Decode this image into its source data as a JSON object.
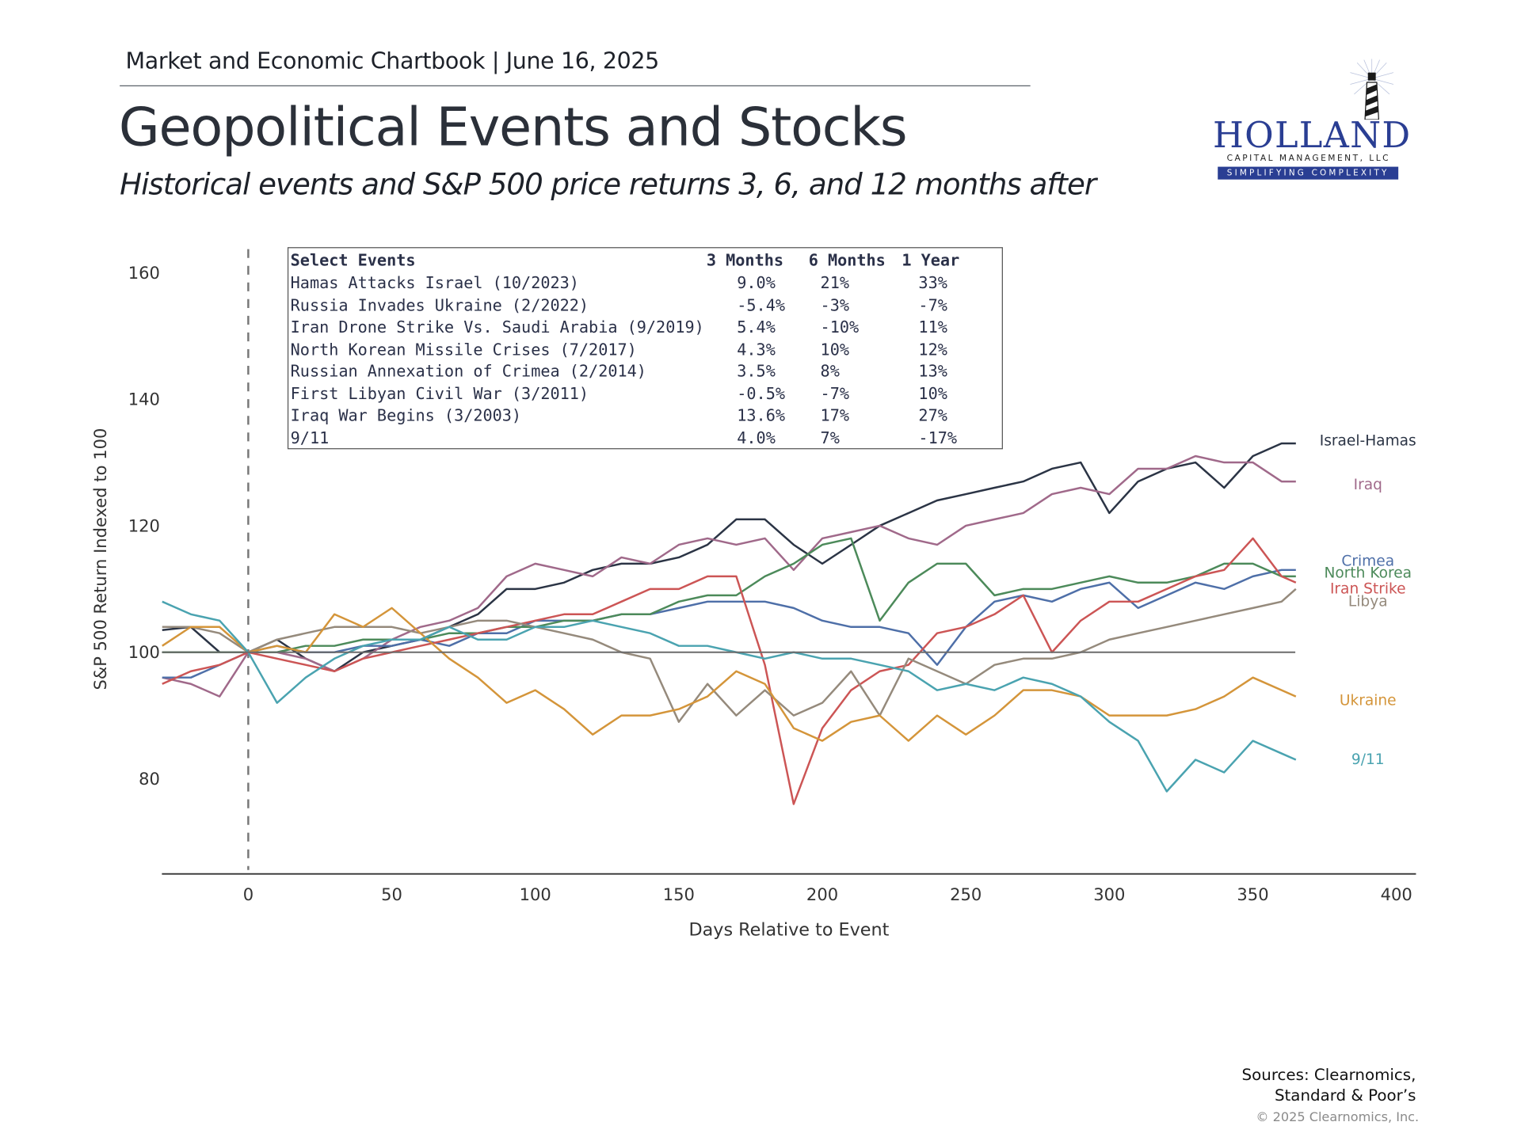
{
  "header": {
    "kicker": "Market and Economic Chartbook | June 16, 2025",
    "title": "Geopolitical Events and Stocks",
    "subtitle": "Historical events and S&P 500 price returns 3, 6, and 12 months after"
  },
  "logo": {
    "wordmark": "HOLLAND",
    "subline": "CAPITAL MANAGEMENT, LLC",
    "tagline": "SIMPLIFYING COMPLEXITY",
    "icon": "lighthouse-icon",
    "brand_color": "#2a3e93"
  },
  "table": {
    "headers": [
      "Select Events",
      "3 Months",
      "6 Months",
      "1 Year"
    ],
    "rows": [
      [
        "Hamas Attacks Israel (10/2023)",
        "9.0%",
        "21%",
        "33%"
      ],
      [
        "Russia Invades Ukraine (2/2022)",
        "-5.4%",
        "-3%",
        "-7%"
      ],
      [
        "Iran Drone Strike Vs. Saudi Arabia (9/2019)",
        "5.4%",
        "-10%",
        "11%"
      ],
      [
        "North Korean Missile Crises (7/2017)",
        "4.3%",
        "10%",
        "12%"
      ],
      [
        "Russian Annexation of Crimea (2/2014)",
        "3.5%",
        "8%",
        "13%"
      ],
      [
        "First Libyan Civil War (3/2011)",
        "-0.5%",
        "-7%",
        "10%"
      ],
      [
        "Iraq War Begins (3/2003)",
        "13.6%",
        "17%",
        "27%"
      ],
      [
        "9/11",
        "4.0%",
        "7%",
        "-17%"
      ]
    ]
  },
  "footer": {
    "sources_line1": "Sources: Clearnomics,",
    "sources_line2": "Standard & Poor’s",
    "copyright": "© 2025 Clearnomics, Inc."
  },
  "chart_data": {
    "type": "line",
    "title": "Geopolitical Events and Stocks",
    "xlabel": "Days Relative to Event",
    "ylabel": "S&P 500 Return Indexed to 100",
    "xlim": [
      -30,
      405
    ],
    "ylim": [
      65,
      165
    ],
    "xticks": [
      0,
      50,
      100,
      150,
      200,
      250,
      300,
      350,
      400
    ],
    "yticks": [
      80,
      100,
      120,
      140,
      160
    ],
    "reference_line": 100,
    "event_marker_x": 0,
    "grid": false,
    "legend": "direct labels at right end of lines",
    "x": [
      -30,
      -20,
      -10,
      0,
      10,
      20,
      30,
      40,
      50,
      60,
      70,
      80,
      90,
      100,
      110,
      120,
      130,
      140,
      150,
      160,
      170,
      180,
      190,
      200,
      210,
      220,
      230,
      240,
      250,
      260,
      270,
      280,
      290,
      300,
      310,
      320,
      330,
      340,
      350,
      360,
      365
    ],
    "series": [
      {
        "name": "Israel-Hamas",
        "color": "#2b3445",
        "values": [
          103.5,
          104,
          100,
          100,
          102,
          99,
          97,
          100,
          101,
          102,
          104,
          106,
          110,
          110,
          111,
          113,
          114,
          114,
          115,
          117,
          121,
          121,
          117,
          114,
          117,
          120,
          122,
          124,
          125,
          126,
          127,
          129,
          130,
          122,
          127,
          129,
          130,
          126,
          131,
          133,
          133
        ]
      },
      {
        "name": "Iraq",
        "color": "#a0698a",
        "values": [
          96,
          95,
          93,
          100,
          100,
          99,
          97,
          99,
          102,
          104,
          105,
          107,
          112,
          114,
          113,
          112,
          115,
          114,
          117,
          118,
          117,
          118,
          113,
          118,
          119,
          120,
          118,
          117,
          120,
          121,
          122,
          125,
          126,
          125,
          129,
          129,
          131,
          130,
          130,
          127,
          127
        ]
      },
      {
        "name": "Crimea",
        "color": "#4e6fa8",
        "values": [
          96,
          96,
          98,
          100,
          101,
          100,
          100,
          101,
          101,
          102,
          101,
          103,
          103,
          105,
          105,
          105,
          106,
          106,
          107,
          108,
          108,
          108,
          107,
          105,
          104,
          104,
          103,
          98,
          104,
          108,
          109,
          108,
          110,
          111,
          107,
          109,
          111,
          110,
          112,
          113,
          113
        ]
      },
      {
        "name": "North Korea",
        "color": "#4c8a5a",
        "values": [
          100,
          100,
          100,
          100,
          100,
          101,
          101,
          102,
          102,
          102,
          103,
          103,
          104,
          104,
          105,
          105,
          106,
          106,
          108,
          109,
          109,
          112,
          114,
          117,
          118,
          105,
          111,
          114,
          114,
          109,
          110,
          110,
          111,
          112,
          111,
          111,
          112,
          114,
          114,
          112,
          112
        ]
      },
      {
        "name": "Iran Strike",
        "color": "#cc5555",
        "values": [
          95,
          97,
          98,
          100,
          99,
          98,
          97,
          99,
          100,
          101,
          102,
          103,
          104,
          105,
          106,
          106,
          108,
          110,
          110,
          112,
          112,
          98,
          76,
          88,
          94,
          97,
          98,
          103,
          104,
          106,
          109,
          100,
          105,
          108,
          108,
          110,
          112,
          113,
          118,
          112,
          111
        ]
      },
      {
        "name": "Libya",
        "color": "#958a7c",
        "values": [
          104,
          104,
          103,
          100,
          102,
          103,
          104,
          104,
          104,
          103,
          104,
          105,
          105,
          104,
          103,
          102,
          100,
          99,
          89,
          95,
          90,
          94,
          90,
          92,
          97,
          90,
          99,
          97,
          95,
          98,
          99,
          99,
          100,
          102,
          103,
          104,
          105,
          106,
          107,
          108,
          110
        ]
      },
      {
        "name": "Ukraine",
        "color": "#d4953a",
        "values": [
          101,
          104,
          104,
          100,
          101,
          100,
          106,
          104,
          107,
          103,
          99,
          96,
          92,
          94,
          91,
          87,
          90,
          90,
          91,
          93,
          97,
          95,
          88,
          86,
          89,
          90,
          86,
          90,
          87,
          90,
          94,
          94,
          93,
          90,
          90,
          90,
          91,
          93,
          96,
          94,
          93
        ]
      },
      {
        "name": "9/11",
        "color": "#4aa3b0",
        "values": [
          108,
          106,
          105,
          100,
          92,
          96,
          99,
          101,
          102,
          102,
          104,
          102,
          102,
          104,
          104,
          105,
          104,
          103,
          101,
          101,
          100,
          99,
          100,
          99,
          99,
          98,
          97,
          94,
          95,
          94,
          96,
          95,
          93,
          89,
          86,
          78,
          83,
          81,
          86,
          84,
          83
        ]
      }
    ],
    "end_labels": [
      "Israel-Hamas",
      "Iraq",
      "Crimea",
      "North Korea",
      "Iran Strike",
      "Libya",
      "Ukraine",
      "9/11"
    ]
  }
}
